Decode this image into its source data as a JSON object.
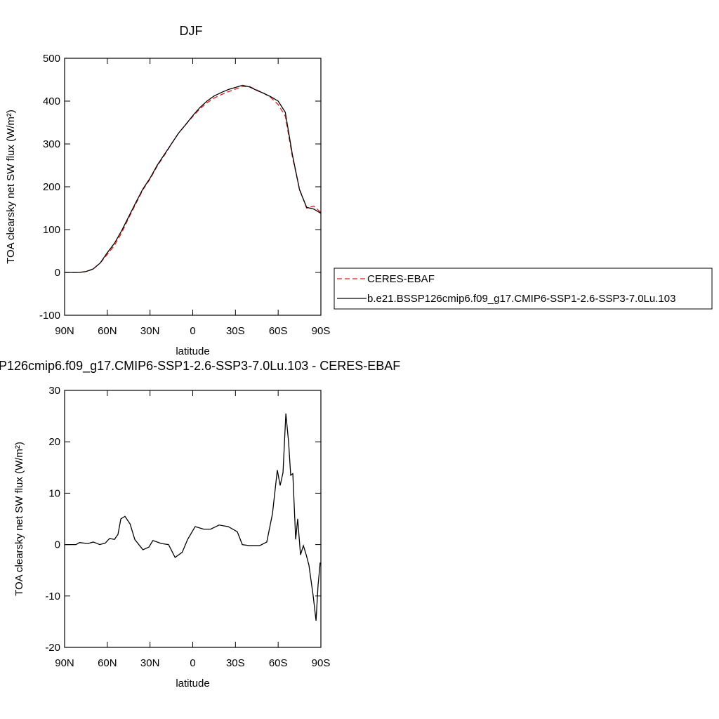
{
  "chart_data": [
    {
      "type": "line",
      "title": "DJF",
      "xlabel": "latitude",
      "ylabel": "TOA clearsky net SW flux (W/m²)",
      "x": [
        90,
        85,
        80,
        75,
        70,
        65,
        60,
        55,
        50,
        45,
        40,
        35,
        30,
        25,
        20,
        15,
        10,
        5,
        0,
        -5,
        -10,
        -15,
        -20,
        -25,
        -30,
        -35,
        -40,
        -45,
        -50,
        -55,
        -60,
        -65,
        -70,
        -75,
        -80,
        -85,
        -90
      ],
      "series": [
        {
          "name": "CERES-EBAF",
          "color": "#e41a1c",
          "style": "dashed",
          "values": [
            0,
            0,
            0,
            2,
            8,
            22,
            42,
            63,
            92,
            127,
            160,
            193,
            218,
            248,
            273,
            300,
            325,
            345,
            364,
            382,
            396,
            407,
            415,
            422,
            428,
            434,
            434,
            426,
            418,
            408,
            392,
            365,
            270,
            195,
            150,
            155,
            140
          ]
        },
        {
          "name": "b.e21.BSSP126cmip6.f09_g17.CMIP6-SSP1-2.6-SSP3-7.0Lu.103",
          "color": "#000000",
          "style": "solid",
          "values": [
            0,
            0,
            0,
            2,
            8,
            22,
            46,
            68,
            97,
            130,
            163,
            195,
            220,
            250,
            275,
            300,
            325,
            345,
            366,
            385,
            400,
            412,
            420,
            427,
            432,
            437,
            433,
            425,
            418,
            410,
            400,
            374,
            275,
            193,
            152,
            148,
            138
          ]
        }
      ],
      "xlim": [
        90,
        -90
      ],
      "xticks": [
        {
          "value": 90,
          "label": "90N"
        },
        {
          "value": 60,
          "label": "60N"
        },
        {
          "value": 30,
          "label": "30N"
        },
        0,
        {
          "value": -30,
          "label": "30S"
        },
        {
          "value": -60,
          "label": "60S"
        },
        {
          "value": -90,
          "label": "90S"
        }
      ],
      "ylim": [
        -100,
        500
      ],
      "yticks": [
        -100,
        0,
        100,
        200,
        300,
        400,
        500
      ]
    },
    {
      "type": "line",
      "title": "P126cmip6.f09_g17.CMIP6-SSP1-2.6-SSP3-7.0Lu.103 - CERES-EBAF",
      "xlabel": "latitude",
      "ylabel": "TOA clearsky net SW flux (W/m²)",
      "x": [
        90,
        82,
        79.6,
        73.7,
        69.8,
        65.3,
        61.4,
        58.4,
        55,
        52.5,
        50.5,
        47.6,
        44,
        40.7,
        35,
        30.8,
        28,
        22,
        17,
        12.4,
        7.4,
        3.6,
        -1.7,
        -7.7,
        -12.6,
        -18.5,
        -24.9,
        -31.3,
        -34.8,
        -39.7,
        -47,
        -52,
        -56,
        -59.4,
        -61.4,
        -63.4,
        -65.4,
        -67.3,
        -68.8,
        -70.3,
        -72.3,
        -73.7,
        -75.7,
        -77.7,
        -79.7,
        -81.6,
        -84.6,
        -86.6,
        -88,
        -89.5
      ],
      "color": "#000000",
      "values": [
        0,
        0,
        0.4,
        0.2,
        0.5,
        0,
        0.3,
        1.2,
        1,
        2,
        5,
        5.5,
        4,
        1,
        -1,
        -0.5,
        0.8,
        0.2,
        0,
        -2.5,
        -1.5,
        1,
        3.5,
        3,
        3,
        3.8,
        3.5,
        2.5,
        0,
        -0.2,
        -0.2,
        0.5,
        6,
        14.5,
        11.5,
        14,
        25.5,
        20,
        13.5,
        13.8,
        1,
        5,
        -2,
        -0.2,
        -2,
        -4,
        -10,
        -14.8,
        -8,
        -3.5
      ],
      "xlim": [
        90,
        -90
      ],
      "xticks": [
        {
          "value": 90,
          "label": "90N"
        },
        {
          "value": 60,
          "label": "60N"
        },
        {
          "value": 30,
          "label": "30N"
        },
        0,
        {
          "value": -30,
          "label": "30S"
        },
        {
          "value": -60,
          "label": "60S"
        },
        {
          "value": -90,
          "label": "90S"
        }
      ],
      "ylim": [
        -20,
        30
      ],
      "yticks": [
        -20,
        -10,
        0,
        10,
        20,
        30
      ]
    }
  ]
}
